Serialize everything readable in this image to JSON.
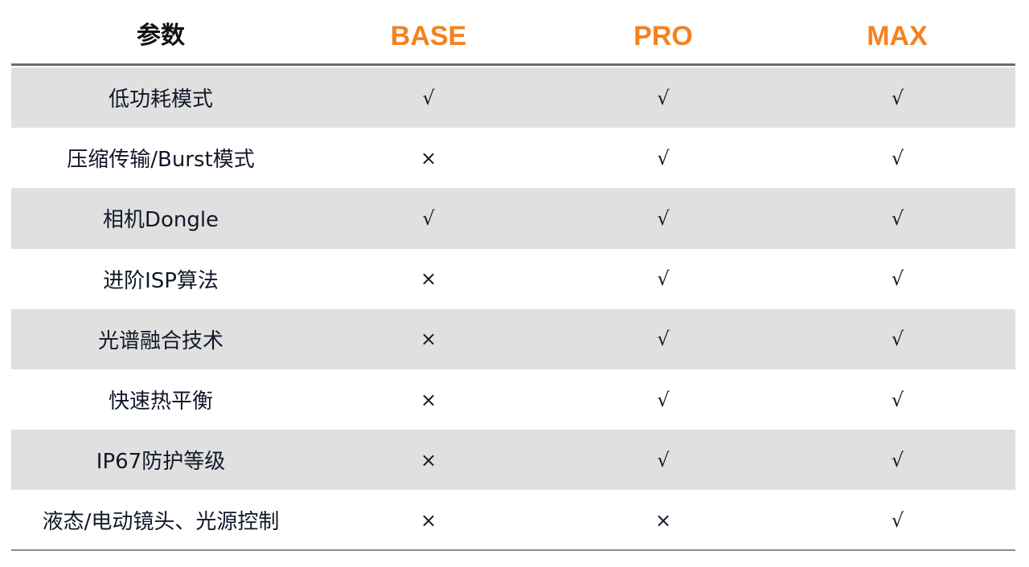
{
  "header": {
    "param": "参数",
    "tiers": [
      "BASE",
      "PRO",
      "MAX"
    ]
  },
  "colors": {
    "accent": "#f5811f",
    "row_shade": "#e0e0e0"
  },
  "rows": [
    {
      "label": "低功耗模式",
      "values": [
        "√",
        "√",
        "√"
      ]
    },
    {
      "label": "压缩传输/Burst模式",
      "values": [
        "×",
        "√",
        "√"
      ]
    },
    {
      "label": "相机Dongle",
      "values": [
        "√",
        "√",
        "√"
      ]
    },
    {
      "label": "进阶ISP算法",
      "values": [
        "×",
        "√",
        "√"
      ]
    },
    {
      "label": "光谱融合技术",
      "values": [
        "×",
        "√",
        "√"
      ]
    },
    {
      "label": "快速热平衡",
      "values": [
        "×",
        "√",
        "√"
      ]
    },
    {
      "label": "IP67防护等级",
      "values": [
        "×",
        "√",
        "√"
      ]
    },
    {
      "label": "液态/电动镜头、光源控制",
      "values": [
        "×",
        "×",
        "√"
      ]
    }
  ]
}
